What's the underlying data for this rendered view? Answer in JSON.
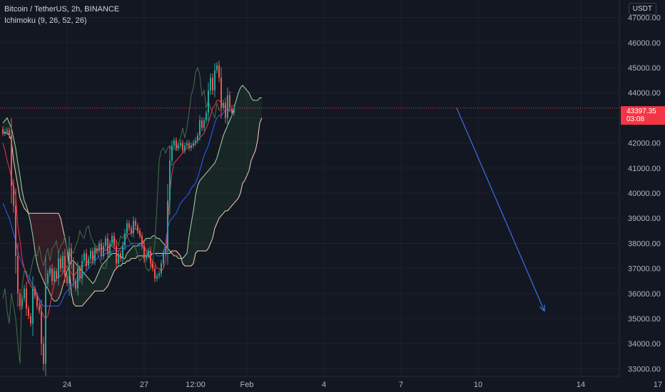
{
  "legend": {
    "symbol": "Bitcoin / TetherUS, 2h, BINANCE",
    "indicator": "Ichimoku (9, 26, 52, 26)"
  },
  "currency_badge": "USDT",
  "price_tag": {
    "price": "43397.35",
    "countdown": "03:08"
  },
  "colors": {
    "background": "#131722",
    "up_candle": "#26a69a",
    "down_candle": "#ef5350",
    "conversion_line": "#f23645",
    "base_line": "#2962ff",
    "lagging_span": "#43704a",
    "leading_span_a": "#a5d6a7",
    "leading_span_b": "#ffccbc",
    "cloud_bull": "rgba(67,160,71,0.12)",
    "cloud_bear": "rgba(244,67,54,0.14)",
    "forecast_arrow": "#3d6ee6",
    "price_line": "#f23645"
  },
  "chart_data": {
    "type": "candlestick",
    "title": "Bitcoin / TetherUS, 2h, BINANCE",
    "ylim": [
      32700,
      47700
    ],
    "y_ticks": [
      {
        "value": 33000,
        "label": "33000.00"
      },
      {
        "value": 34000,
        "label": "34000.00"
      },
      {
        "value": 35000,
        "label": "35000.00"
      },
      {
        "value": 36000,
        "label": "36000.00"
      },
      {
        "value": 37000,
        "label": "37000.00"
      },
      {
        "value": 38000,
        "label": "38000.00"
      },
      {
        "value": 39000,
        "label": "39000.00"
      },
      {
        "value": 40000,
        "label": "40000.00"
      },
      {
        "value": 41000,
        "label": "41000.00"
      },
      {
        "value": 42000,
        "label": "42000.00"
      },
      {
        "value": 43000,
        "label": "43000.00"
      },
      {
        "value": 44000,
        "label": "44000.00"
      },
      {
        "value": 45000,
        "label": "45000.00"
      },
      {
        "value": 46000,
        "label": "46000.00"
      },
      {
        "value": 47000,
        "label": "47000.00"
      }
    ],
    "x_ticks": [
      {
        "bar": 30,
        "label": "24"
      },
      {
        "bar": 66,
        "label": "27"
      },
      {
        "bar": 90,
        "label": "12:00"
      },
      {
        "bar": 114,
        "label": "Feb"
      },
      {
        "bar": 150,
        "label": "4"
      },
      {
        "bar": 186,
        "label": "7"
      },
      {
        "bar": 222,
        "label": "10"
      },
      {
        "bar": 270,
        "label": "14"
      },
      {
        "bar": 306,
        "label": "17"
      }
    ],
    "last_price": 43397.35,
    "closes": [
      42400,
      42450,
      42500,
      42300,
      40300,
      39500,
      37500,
      36000,
      35500,
      35800,
      36200,
      35400,
      35100,
      34800,
      36200,
      35900,
      35500,
      35300,
      34000,
      33200,
      36400,
      36800,
      37000,
      36500,
      36900,
      36600,
      37400,
      37000,
      37500,
      36700,
      36400,
      37800,
      37200,
      36500,
      36200,
      37000,
      36600,
      37300,
      37600,
      37100,
      37400,
      37700,
      37300,
      37800,
      37700,
      38000,
      37500,
      37900,
      38200,
      37600,
      38000,
      38300,
      37900,
      37200,
      37600,
      37400,
      37900,
      38400,
      38800,
      38600,
      38400,
      38900,
      38700,
      38500,
      38300,
      37900,
      37400,
      37500,
      37700,
      37200,
      37000,
      36600,
      36700,
      36800,
      37200,
      37600,
      37800,
      39700,
      41300,
      41900,
      42100,
      41800,
      41900,
      42000,
      41700,
      41900,
      42000,
      41800,
      41900,
      42000,
      42100,
      42300,
      42900,
      42600,
      42900,
      43200,
      44100,
      44600,
      44100,
      44900,
      45100,
      44600,
      43400,
      43600,
      43000,
      43900,
      43400,
      43200,
      43400
    ],
    "tenkan": [
      42000,
      41700,
      41300,
      41000,
      40600,
      40200,
      39900,
      38700,
      38100,
      37400,
      37000,
      36700,
      36500,
      36300,
      36200,
      36100,
      35900,
      35700,
      35300,
      35100,
      35000,
      35100,
      35500,
      36000,
      36400,
      36600,
      36700,
      36700,
      36800,
      37000,
      37100,
      37000,
      36800,
      36700,
      36800,
      36900,
      37000,
      37100,
      37100,
      37200,
      37300,
      37200,
      37300,
      37600,
      37700,
      37800,
      37800,
      37800,
      37700,
      37800,
      37900,
      37900,
      37800,
      37800,
      37800,
      37800,
      37900,
      38100,
      38300,
      38400,
      38400,
      38500,
      38600,
      38500,
      38400,
      38200,
      37900,
      37700,
      37500,
      37400,
      37300,
      37200,
      37000,
      37000,
      36900,
      37000,
      37300,
      38700,
      40000,
      40800,
      41200,
      41300,
      41400,
      41500,
      41600,
      41700,
      41800,
      41800,
      41900,
      41900,
      42000,
      42100,
      42200,
      42300,
      42400,
      42600,
      42800,
      43100,
      43400,
      43500,
      43700,
      43700,
      43600,
      43500,
      43400,
      43400,
      43300,
      43300
    ],
    "kijun": [
      39600,
      39400,
      39200,
      39000,
      38700,
      38400,
      38100,
      37700,
      37400,
      37200,
      37000,
      36800,
      36700,
      36500,
      36300,
      36200,
      36000,
      35800,
      35600,
      35500,
      35500,
      35500,
      35500,
      35500,
      35500,
      35500,
      35500,
      35600,
      35800,
      36000,
      36100,
      36200,
      36300,
      36400,
      36500,
      36500,
      36600,
      36700,
      36800,
      36900,
      37000,
      37100,
      37200,
      37300,
      37400,
      37500,
      37500,
      37500,
      37600,
      37600,
      37600,
      37700,
      37700,
      37700,
      37700,
      37800,
      37800,
      37800,
      37900,
      37900,
      38000,
      38000,
      38000,
      38000,
      37900,
      37900,
      37800,
      37700,
      37700,
      37600,
      37600,
      37600,
      37500,
      37500,
      37500,
      37600,
      38000,
      38600,
      38900,
      39000,
      39100,
      39200,
      39400,
      39600,
      39700,
      39800,
      39900,
      40000,
      40200,
      40300,
      40400,
      40600,
      40900,
      41200,
      41500,
      41700,
      41900,
      42200,
      42500,
      42800,
      43000,
      43100,
      43100,
      43200,
      43300,
      43300,
      43300
    ],
    "senkou_a": [
      42800,
      42900,
      43000,
      42800,
      42600,
      42200,
      41800,
      41200,
      40700,
      40100,
      39700,
      39500,
      39200,
      38800,
      38300,
      37700,
      37200,
      36900,
      36700,
      36500,
      36300,
      36200,
      36000,
      35800,
      35700,
      35700,
      35800,
      36000,
      36300,
      36600,
      36900,
      37100,
      37300,
      37300,
      37200,
      37100,
      37000,
      36900,
      36800,
      36700,
      36600,
      36500,
      36400,
      36500,
      36700,
      36900,
      37100,
      37200,
      37300,
      37400,
      37500,
      37600,
      37600,
      37600,
      37500,
      37500,
      37400,
      37400,
      37600,
      37700,
      37800,
      37900,
      37900,
      37900,
      38000,
      38000,
      38100,
      38200,
      38200,
      38200,
      38300,
      38300,
      38200,
      38200,
      38100,
      38000,
      37900,
      37800,
      37700,
      37600,
      37500,
      37500,
      37400,
      37400,
      37400,
      37500,
      37600,
      38300,
      38800,
      39300,
      39900,
      40300,
      40500,
      40600,
      40700,
      40800,
      40900,
      41000,
      41100,
      41200,
      41400,
      41700,
      42000,
      42300,
      42500,
      42700,
      42900,
      43100,
      43400,
      43700,
      44000,
      44200,
      44300,
      44200,
      44100,
      44000,
      43800,
      43700,
      43700,
      43700,
      43800,
      43800
    ],
    "senkou_b": [
      42400,
      42400,
      42400,
      42300,
      42100,
      41300,
      40800,
      40300,
      39800,
      39600,
      39400,
      39300,
      39200,
      39200,
      39200,
      39200,
      39200,
      39200,
      39200,
      39200,
      39200,
      39200,
      39200,
      39200,
      39200,
      39200,
      39200,
      39000,
      38600,
      38200,
      37800,
      37000,
      36000,
      35600,
      35500,
      35500,
      35500,
      35500,
      35600,
      35700,
      35800,
      35900,
      36000,
      36100,
      36100,
      36100,
      36100,
      36100,
      36200,
      36300,
      36500,
      36700,
      36900,
      37000,
      37100,
      37100,
      37200,
      37200,
      37300,
      37300,
      37400,
      37400,
      37400,
      37500,
      37500,
      37500,
      37500,
      37500,
      37500,
      37500,
      37600,
      37600,
      37600,
      37600,
      37600,
      37600,
      37600,
      37600,
      37600,
      37700,
      37700,
      37700,
      37600,
      37500,
      37200,
      37100,
      37100,
      37100,
      37100,
      37200,
      37600,
      37700,
      37700,
      37700,
      37700,
      37700,
      37800,
      38000,
      38200,
      38600,
      38800,
      39000,
      39100,
      39200,
      39300,
      39300,
      39400,
      39500,
      39600,
      39700,
      39800,
      40000,
      40400,
      40500,
      40700,
      40900,
      41300,
      41500,
      41700,
      42100,
      42800,
      43000
    ],
    "chikou": [
      35800,
      36200,
      35300,
      34800,
      36000,
      35500,
      35000,
      34000,
      33200,
      36300,
      36900,
      36900,
      36400,
      36900,
      37300,
      37600,
      37500,
      37900,
      37400,
      37100,
      37500,
      37800,
      37300,
      37800,
      37900,
      38100,
      37600,
      37900,
      38000,
      38300,
      37800,
      37400,
      37700,
      37600,
      37900,
      38100,
      38500,
      38300,
      38200,
      38600,
      38700,
      38300,
      38100,
      37900,
      37600,
      37400,
      37200,
      37000,
      37000,
      37400,
      37800,
      38000,
      38200,
      38100,
      37900,
      38300,
      38200,
      38400,
      38300,
      38100,
      38000,
      37900,
      37800,
      37500,
      37300,
      37400,
      37500,
      37000,
      36900,
      37000,
      37300,
      38000,
      39500,
      41300,
      41700,
      41800,
      41600,
      41800,
      41900,
      41700,
      41800,
      41700,
      42000,
      42200,
      42600,
      42200,
      42600,
      43200,
      43900,
      44200,
      44800,
      45000,
      44700,
      43900,
      44100,
      43400,
      43700,
      43400,
      43200,
      43000,
      43600,
      43300,
      43400
    ],
    "forecast_arrow": {
      "from": {
        "bar": 212,
        "price": 43397.35
      },
      "to": {
        "bar": 253,
        "price": 35300
      }
    }
  }
}
